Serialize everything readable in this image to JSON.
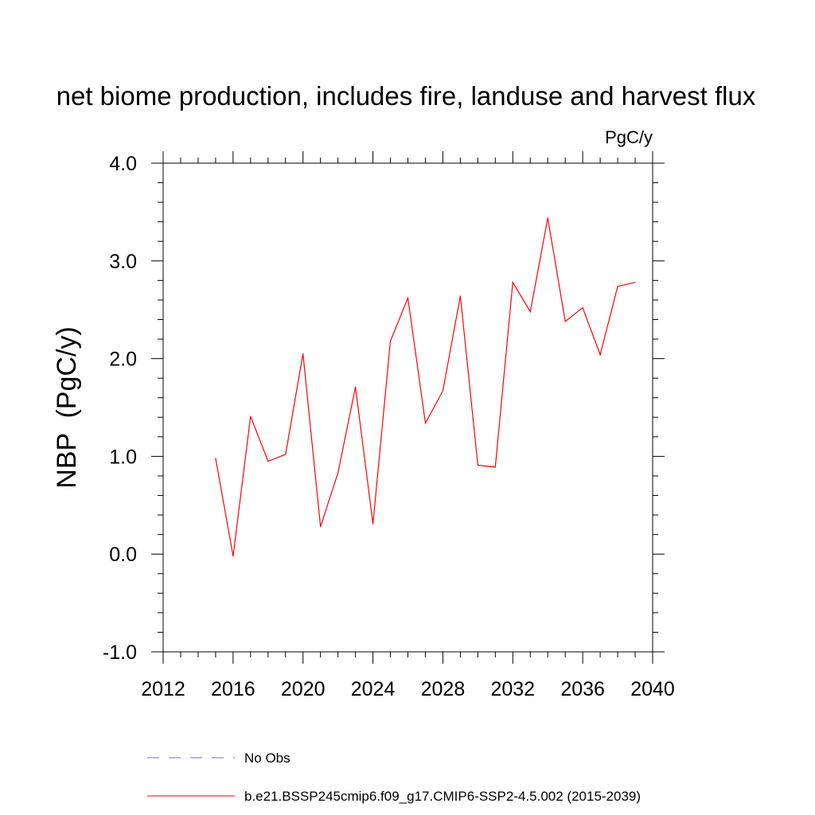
{
  "chart_data": {
    "type": "line",
    "title": "net biome production, includes fire, landuse and harvest flux",
    "units": "PgC/y",
    "ylabel": "NBP  (PgC/y)",
    "xlabel": "",
    "xlim": [
      2012,
      2040
    ],
    "ylim": [
      -1.0,
      4.0
    ],
    "x_major_ticks": [
      2012,
      2016,
      2020,
      2024,
      2028,
      2032,
      2036,
      2040
    ],
    "x_tick_labels": [
      "2012",
      "2016",
      "2020",
      "2024",
      "2028",
      "2032",
      "2036",
      "2040"
    ],
    "y_major_ticks": [
      -1.0,
      0.0,
      1.0,
      2.0,
      3.0,
      4.0
    ],
    "y_tick_labels": [
      "-1.0",
      "0.0",
      "1.0",
      "2.0",
      "3.0",
      "4.0"
    ],
    "grid": false,
    "legend_position": "bottom",
    "series": [
      {
        "name": "b.e21.BSSP245cmip6.f09_g17.CMIP6-SSP2-4.5.002 (2015-2039)",
        "color": "#ff0000",
        "style": "solid",
        "x": [
          2015,
          2016,
          2017,
          2018,
          2019,
          2020,
          2021,
          2022,
          2023,
          2024,
          2025,
          2026,
          2027,
          2028,
          2029,
          2030,
          2031,
          2032,
          2033,
          2034,
          2035,
          2036,
          2037,
          2038,
          2039
        ],
        "values": [
          0.98,
          -0.02,
          1.41,
          0.95,
          1.02,
          2.05,
          0.28,
          0.83,
          1.71,
          0.31,
          2.18,
          2.62,
          1.34,
          1.67,
          2.64,
          0.91,
          0.89,
          2.78,
          2.48,
          3.44,
          2.38,
          2.52,
          2.04,
          2.74,
          2.78
        ]
      }
    ],
    "legend": [
      {
        "label": "No Obs",
        "color": "#6a6ad0",
        "style": "dashed"
      },
      {
        "label": "b.e21.BSSP245cmip6.f09_g17.CMIP6-SSP2-4.5.002 (2015-2039)",
        "color": "#ff0000",
        "style": "solid"
      }
    ]
  }
}
